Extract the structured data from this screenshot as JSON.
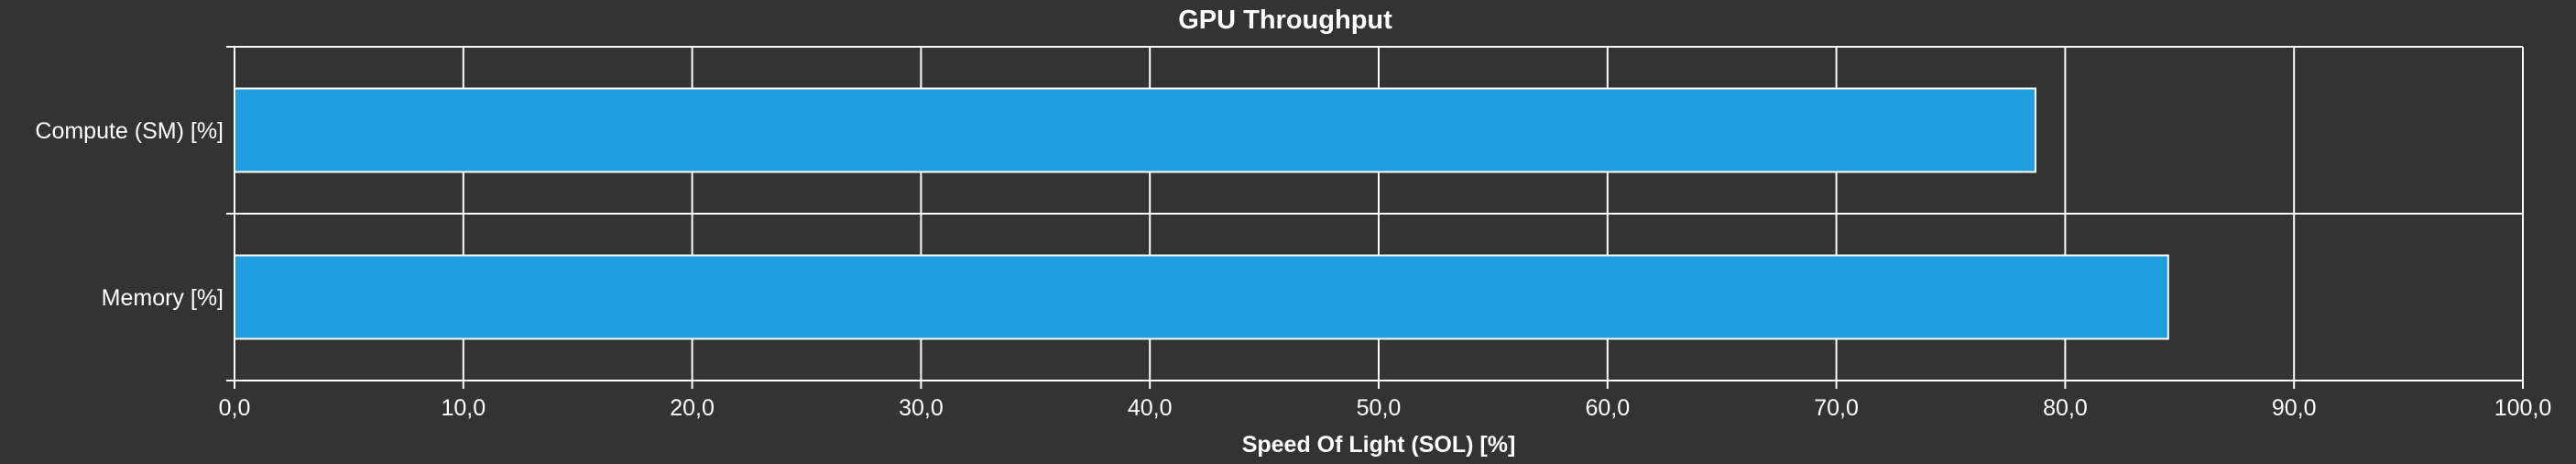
{
  "chart_data": {
    "type": "bar",
    "orientation": "horizontal",
    "title": "GPU Throughput",
    "xlabel": "Speed Of Light (SOL) [%]",
    "ylabel": "",
    "categories": [
      "Compute (SM) [%]",
      "Memory [%]"
    ],
    "values": [
      78.7,
      84.5
    ],
    "xlim": [
      0,
      100
    ],
    "x_ticks": [
      0,
      10,
      20,
      30,
      40,
      50,
      60,
      70,
      80,
      90,
      100
    ],
    "x_tick_labels": [
      "0,0",
      "10,0",
      "20,0",
      "30,0",
      "40,0",
      "50,0",
      "60,0",
      "70,0",
      "80,0",
      "90,0",
      "100,0"
    ],
    "grid": true,
    "legend": "none"
  },
  "colors": {
    "background": "#333333",
    "bar_fill": "#1f9ede",
    "bar_stroke": "#ffffff",
    "grid": "#ffffff",
    "text": "#ffffff"
  }
}
